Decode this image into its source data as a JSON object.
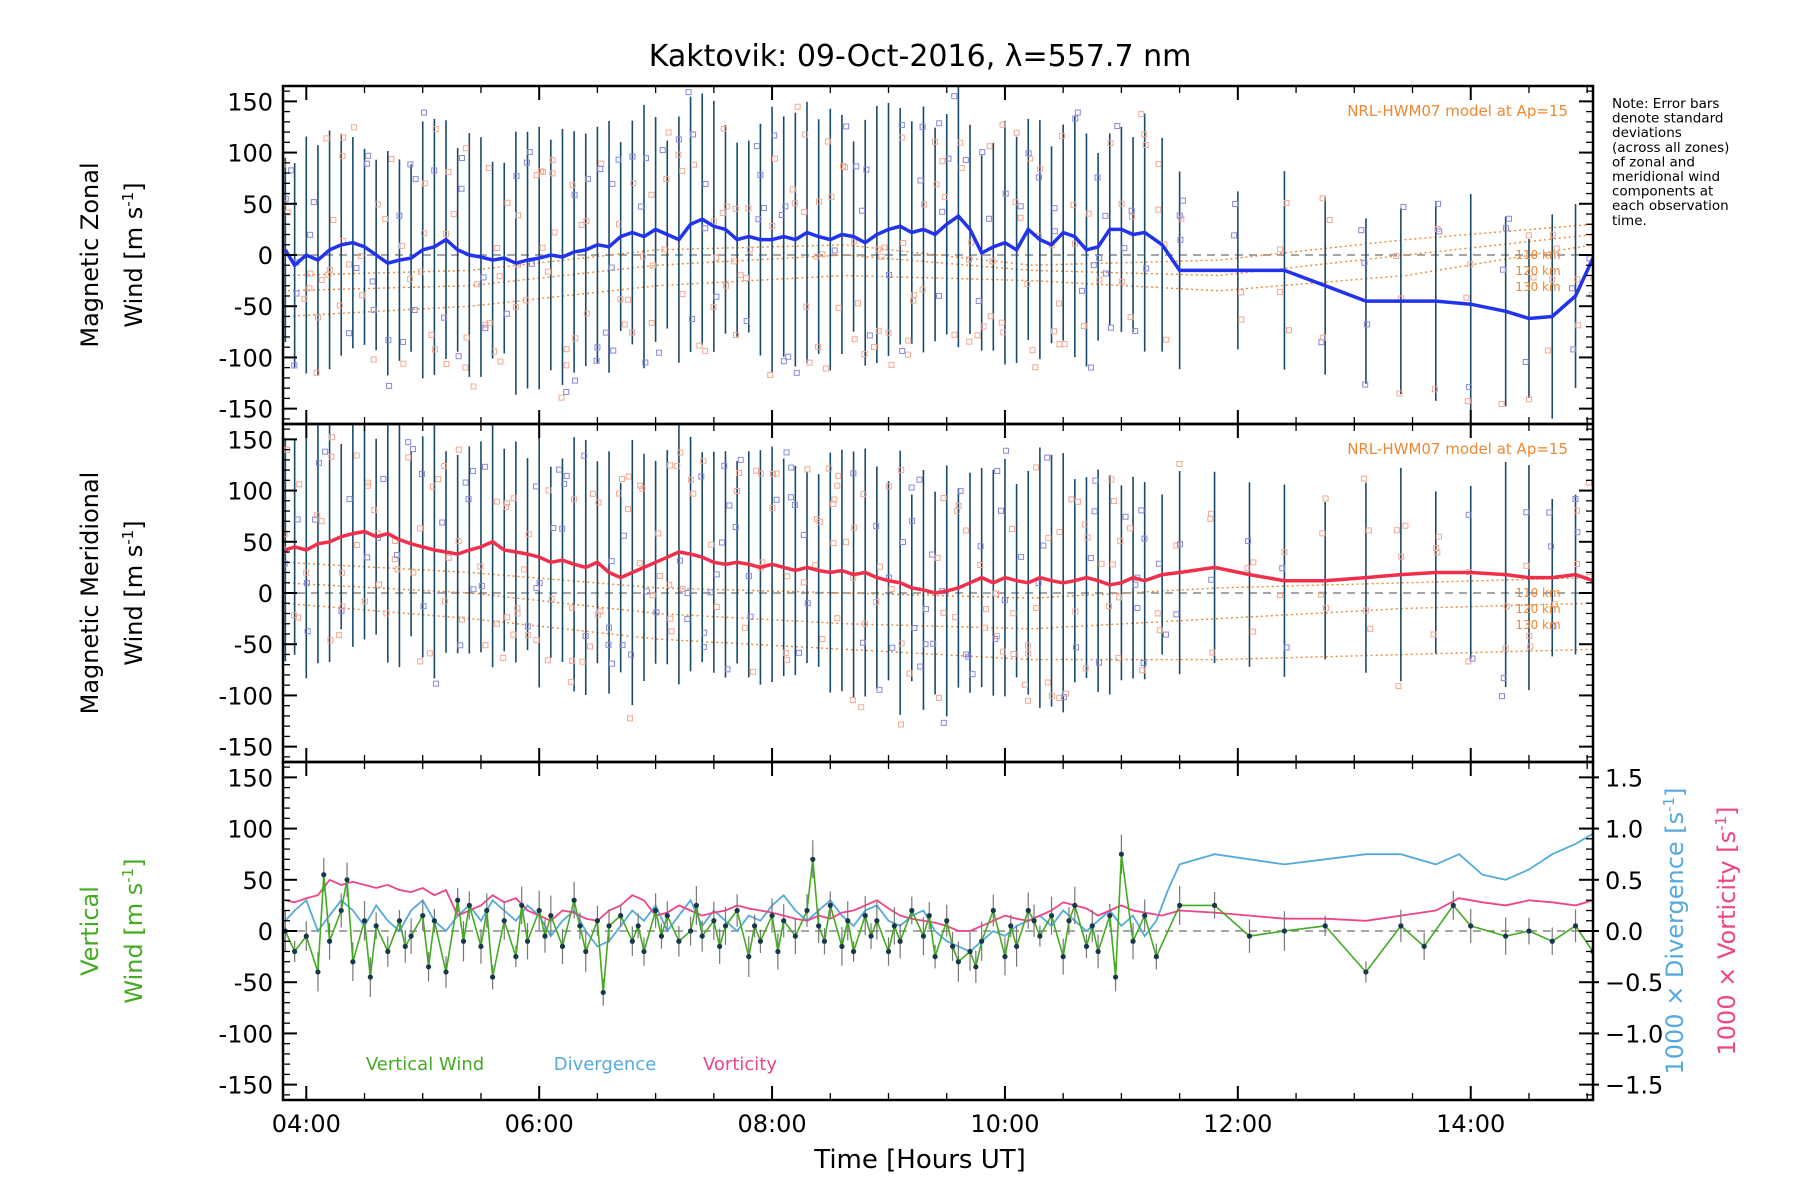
{
  "title": "Kaktovik: 09-Oct-2016, λ=557.7 nm",
  "note": {
    "lines": [
      "Note: Error bars",
      "denote standard",
      "deviations",
      "(across all zones)",
      "of zonal and",
      "meridional wind",
      "components at",
      "each observation",
      "time."
    ]
  },
  "xaxis": {
    "label": "Time [Hours UT]",
    "range": [
      3.8,
      15.05
    ],
    "ticks": [
      "04:00",
      "06:00",
      "08:00",
      "10:00",
      "12:00",
      "14:00"
    ],
    "tick_values": [
      4,
      6,
      8,
      10,
      12,
      14
    ]
  },
  "colors": {
    "zonal": "#2233ee",
    "meridional": "#f0304a",
    "vertical": "#44aa22",
    "divergence": "#55aadd",
    "vorticity": "#ee4488",
    "model": "#ee8833",
    "scatter_salmon": "#f4a890",
    "scatter_blue": "#8888dd",
    "errorbar": "#1a4a6a"
  },
  "chart_data": [
    {
      "type": "line",
      "panel": "zonal",
      "ylabel_line1": "Magnetic Zonal",
      "ylabel_line2": "Wind [m s",
      "ylabel_sup": "-1",
      "ylabel_end": "]",
      "ylim": [
        -165,
        165
      ],
      "yticks": [
        150,
        100,
        50,
        0,
        -50,
        -100,
        -150
      ],
      "model_label": "NRL-HWM07 model at Ap=15",
      "model_alt_labels": [
        "110 km",
        "120 km",
        "130 km"
      ],
      "series": [
        {
          "x": [
            3.82,
            3.9,
            4.0,
            4.1,
            4.2,
            4.3,
            4.4,
            4.5,
            4.6,
            4.7,
            4.8,
            4.9,
            5.0,
            5.1,
            5.2,
            5.3,
            5.4,
            5.5,
            5.6,
            5.7,
            5.8,
            5.9,
            6.0,
            6.1,
            6.2,
            6.3,
            6.4,
            6.5,
            6.6,
            6.7,
            6.8,
            6.9,
            7.0,
            7.1,
            7.2,
            7.3,
            7.4,
            7.5,
            7.6,
            7.7,
            7.8,
            7.9,
            8.0,
            8.1,
            8.2,
            8.3,
            8.4,
            8.5,
            8.6,
            8.7,
            8.8,
            8.9,
            9.0,
            9.1,
            9.2,
            9.3,
            9.4,
            9.5,
            9.6,
            9.7,
            9.8,
            9.9,
            10.0,
            10.1,
            10.2,
            10.3,
            10.4,
            10.5,
            10.6,
            10.7,
            10.8,
            10.9,
            11.0,
            11.1,
            11.2,
            11.35,
            11.5,
            12.0,
            12.4,
            12.75,
            13.1,
            13.4,
            13.7,
            14.0,
            14.3,
            14.5,
            14.7,
            14.9,
            15.05
          ],
          "values": [
            5,
            -10,
            0,
            -5,
            5,
            10,
            12,
            8,
            0,
            -8,
            -5,
            -3,
            5,
            8,
            15,
            5,
            0,
            -2,
            -5,
            -3,
            -8,
            -5,
            -3,
            0,
            -2,
            3,
            5,
            10,
            8,
            18,
            22,
            18,
            25,
            20,
            15,
            30,
            35,
            28,
            25,
            15,
            18,
            15,
            15,
            18,
            15,
            22,
            18,
            15,
            20,
            18,
            12,
            20,
            25,
            28,
            22,
            25,
            20,
            30,
            38,
            25,
            2,
            8,
            12,
            5,
            25,
            15,
            10,
            22,
            18,
            5,
            8,
            25,
            25,
            20,
            22,
            10,
            -15,
            -15,
            -15,
            -30,
            -45,
            -45,
            -45,
            -48,
            -55,
            -62,
            -60,
            -40,
            -3
          ]
        }
      ]
    },
    {
      "type": "line",
      "panel": "meridional",
      "ylabel_line1": "Magnetic Meridional",
      "ylabel_line2": "Wind [m s",
      "ylabel_sup": "-1",
      "ylabel_end": "]",
      "ylim": [
        -165,
        165
      ],
      "yticks": [
        150,
        100,
        50,
        0,
        -50,
        -100,
        -150
      ],
      "model_label": "NRL-HWM07 model at Ap=15",
      "model_alt_labels": [
        "110 km",
        "120 km",
        "130 km"
      ],
      "series": [
        {
          "x": [
            3.82,
            3.9,
            4.0,
            4.1,
            4.2,
            4.3,
            4.4,
            4.5,
            4.6,
            4.7,
            4.8,
            4.9,
            5.0,
            5.1,
            5.2,
            5.3,
            5.4,
            5.5,
            5.6,
            5.7,
            5.8,
            5.9,
            6.0,
            6.1,
            6.2,
            6.3,
            6.4,
            6.5,
            6.6,
            6.7,
            6.8,
            6.9,
            7.0,
            7.1,
            7.2,
            7.3,
            7.4,
            7.5,
            7.6,
            7.7,
            7.8,
            7.9,
            8.0,
            8.1,
            8.2,
            8.3,
            8.4,
            8.5,
            8.6,
            8.7,
            8.8,
            8.9,
            9.0,
            9.1,
            9.2,
            9.3,
            9.4,
            9.5,
            9.6,
            9.7,
            9.8,
            9.9,
            10.0,
            10.1,
            10.2,
            10.3,
            10.4,
            10.5,
            10.6,
            10.7,
            10.8,
            10.9,
            11.0,
            11.1,
            11.2,
            11.35,
            11.5,
            11.8,
            12.1,
            12.4,
            12.75,
            13.1,
            13.4,
            13.7,
            14.0,
            14.3,
            14.5,
            14.7,
            14.9,
            15.05
          ],
          "values": [
            42,
            45,
            42,
            48,
            50,
            55,
            58,
            60,
            55,
            58,
            52,
            48,
            45,
            42,
            40,
            38,
            42,
            45,
            50,
            42,
            40,
            38,
            35,
            30,
            32,
            28,
            25,
            30,
            20,
            15,
            20,
            25,
            30,
            35,
            40,
            38,
            35,
            30,
            28,
            30,
            28,
            25,
            28,
            25,
            22,
            25,
            22,
            20,
            22,
            18,
            20,
            15,
            12,
            10,
            5,
            3,
            0,
            2,
            5,
            10,
            15,
            10,
            15,
            12,
            10,
            15,
            12,
            10,
            12,
            15,
            12,
            8,
            10,
            15,
            12,
            18,
            20,
            25,
            18,
            12,
            12,
            15,
            18,
            20,
            20,
            18,
            15,
            15,
            18,
            12
          ]
        }
      ]
    },
    {
      "type": "line",
      "panel": "vertical",
      "ylabel_line1": "Vertical",
      "ylabel_line2": "Wind [m s",
      "ylabel_sup": "-1",
      "ylabel_end": "]",
      "ylim": [
        -165,
        165
      ],
      "yticks": [
        150,
        100,
        50,
        0,
        -50,
        -100,
        -150
      ],
      "y2label_div": "1000 × Divergence [s",
      "y2label_vor": "1000 × Vorticity [s",
      "y2label_sup": "-1",
      "y2label_end": "]",
      "y2lim": [
        -1.65,
        1.65
      ],
      "y2ticks": [
        "1.5",
        "1.0",
        "0.5",
        "0.0",
        "−0.5",
        "−1.0",
        "−1.5"
      ],
      "y2tick_values": [
        1.5,
        1.0,
        0.5,
        0.0,
        -0.5,
        -1.0,
        -1.5
      ],
      "legend": [
        "Vertical Wind",
        "Divergence",
        "Vorticity"
      ],
      "series": [
        {
          "name": "Vertical Wind",
          "x": [
            3.82,
            3.9,
            4.0,
            4.1,
            4.15,
            4.2,
            4.3,
            4.35,
            4.4,
            4.5,
            4.55,
            4.6,
            4.7,
            4.8,
            4.85,
            4.9,
            5.0,
            5.05,
            5.1,
            5.2,
            5.3,
            5.35,
            5.4,
            5.5,
            5.55,
            5.6,
            5.7,
            5.8,
            5.85,
            5.9,
            6.0,
            6.05,
            6.1,
            6.2,
            6.3,
            6.35,
            6.4,
            6.5,
            6.55,
            6.6,
            6.7,
            6.8,
            6.85,
            6.9,
            7.0,
            7.05,
            7.1,
            7.2,
            7.3,
            7.35,
            7.4,
            7.5,
            7.55,
            7.6,
            7.7,
            7.8,
            7.85,
            7.9,
            8.0,
            8.05,
            8.1,
            8.2,
            8.3,
            8.35,
            8.4,
            8.45,
            8.5,
            8.6,
            8.65,
            8.7,
            8.8,
            8.85,
            8.9,
            9.0,
            9.05,
            9.1,
            9.2,
            9.3,
            9.35,
            9.4,
            9.5,
            9.55,
            9.6,
            9.7,
            9.75,
            9.8,
            9.9,
            10.0,
            10.05,
            10.1,
            10.2,
            10.25,
            10.3,
            10.4,
            10.5,
            10.55,
            10.6,
            10.7,
            10.75,
            10.8,
            10.9,
            10.95,
            11.0,
            11.1,
            11.2,
            11.3,
            11.5,
            11.8,
            12.1,
            12.4,
            12.75,
            13.1,
            13.4,
            13.6,
            13.85,
            14.0,
            14.3,
            14.5,
            14.7,
            14.9,
            15.05
          ],
          "values": [
            0,
            -20,
            -5,
            -40,
            55,
            -10,
            20,
            50,
            -30,
            10,
            -45,
            5,
            -20,
            10,
            -15,
            -5,
            15,
            -35,
            10,
            -40,
            30,
            -10,
            25,
            -15,
            20,
            -45,
            10,
            -25,
            25,
            -10,
            20,
            -5,
            15,
            -15,
            30,
            5,
            -20,
            10,
            -60,
            5,
            15,
            -10,
            5,
            -20,
            20,
            -5,
            15,
            -10,
            0,
            25,
            -5,
            10,
            -15,
            5,
            20,
            -25,
            5,
            -10,
            15,
            -20,
            10,
            -5,
            20,
            70,
            5,
            -10,
            25,
            -15,
            10,
            -20,
            15,
            -5,
            10,
            -20,
            5,
            -10,
            20,
            -5,
            15,
            -25,
            10,
            -15,
            -30,
            -20,
            -35,
            -10,
            20,
            -25,
            5,
            -15,
            20,
            10,
            -5,
            15,
            -25,
            10,
            25,
            -15,
            5,
            -20,
            15,
            -45,
            75,
            -10,
            15,
            -25,
            25,
            25,
            -5,
            0,
            5,
            -40,
            5,
            -15,
            25,
            5,
            -5,
            0,
            -10,
            5,
            -20
          ]
        },
        {
          "name": "Divergence",
          "x": [
            3.82,
            3.9,
            4.0,
            4.1,
            4.2,
            4.3,
            4.4,
            4.5,
            4.6,
            4.7,
            4.8,
            4.9,
            5.0,
            5.1,
            5.2,
            5.3,
            5.4,
            5.5,
            5.6,
            5.7,
            5.8,
            5.9,
            6.0,
            6.1,
            6.2,
            6.3,
            6.4,
            6.5,
            6.6,
            6.7,
            6.8,
            6.9,
            7.0,
            7.1,
            7.2,
            7.3,
            7.4,
            7.5,
            7.6,
            7.7,
            7.8,
            7.9,
            8.0,
            8.1,
            8.2,
            8.3,
            8.4,
            8.5,
            8.6,
            8.7,
            8.8,
            8.9,
            9.0,
            9.1,
            9.2,
            9.3,
            9.4,
            9.5,
            9.6,
            9.7,
            9.8,
            9.9,
            10.0,
            10.1,
            10.2,
            10.3,
            10.4,
            10.5,
            10.6,
            10.7,
            10.8,
            10.9,
            11.0,
            11.1,
            11.2,
            11.3,
            11.4,
            11.5,
            11.8,
            12.1,
            12.4,
            12.75,
            13.1,
            13.4,
            13.7,
            13.9,
            14.1,
            14.3,
            14.5,
            14.7,
            14.9,
            15.05
          ],
          "values": [
            0.1,
            0.2,
            0.3,
            0.0,
            0.15,
            0.3,
            0.2,
            0.05,
            0.25,
            0.1,
            0.0,
            0.2,
            0.3,
            0.1,
            0.0,
            0.15,
            0.25,
            0.1,
            0.3,
            0.2,
            0.1,
            0.25,
            0.15,
            -0.05,
            0.1,
            0.2,
            0.0,
            -0.15,
            -0.1,
            0.05,
            0.2,
            0.1,
            0.25,
            0.0,
            0.15,
            0.3,
            0.05,
            0.2,
            0.1,
            0.0,
            0.15,
            0.1,
            0.25,
            0.35,
            0.2,
            0.1,
            0.2,
            0.3,
            0.15,
            0.05,
            0.2,
            0.25,
            0.1,
            0.05,
            0.15,
            0.2,
            0.0,
            -0.1,
            -0.15,
            -0.2,
            -0.1,
            0.0,
            -0.05,
            0.05,
            0.1,
            0.15,
            0.05,
            0.2,
            0.1,
            0.0,
            0.1,
            0.2,
            0.05,
            0.15,
            -0.05,
            0.1,
            0.4,
            0.65,
            0.75,
            0.7,
            0.65,
            0.7,
            0.75,
            0.75,
            0.65,
            0.75,
            0.55,
            0.5,
            0.6,
            0.75,
            0.85,
            0.95
          ]
        },
        {
          "name": "Vorticity",
          "x": [
            3.82,
            3.9,
            4.0,
            4.1,
            4.2,
            4.3,
            4.4,
            4.5,
            4.6,
            4.7,
            4.8,
            4.9,
            5.0,
            5.1,
            5.2,
            5.3,
            5.4,
            5.5,
            5.6,
            5.7,
            5.8,
            5.9,
            6.0,
            6.1,
            6.2,
            6.3,
            6.4,
            6.5,
            6.6,
            6.7,
            6.8,
            6.9,
            7.0,
            7.1,
            7.2,
            7.3,
            7.4,
            7.5,
            7.6,
            7.7,
            7.8,
            7.9,
            8.0,
            8.1,
            8.2,
            8.3,
            8.4,
            8.5,
            8.6,
            8.7,
            8.8,
            8.9,
            9.0,
            9.1,
            9.2,
            9.3,
            9.4,
            9.5,
            9.6,
            9.7,
            9.8,
            9.9,
            10.0,
            10.1,
            10.2,
            10.3,
            10.4,
            10.5,
            10.6,
            10.7,
            10.8,
            10.9,
            11.0,
            11.1,
            11.2,
            11.35,
            11.5,
            11.8,
            12.1,
            12.4,
            12.75,
            13.1,
            13.4,
            13.7,
            13.9,
            14.1,
            14.3,
            14.5,
            14.7,
            14.9,
            15.05
          ],
          "values": [
            0.3,
            0.28,
            0.32,
            0.35,
            0.5,
            0.45,
            0.48,
            0.45,
            0.42,
            0.45,
            0.4,
            0.38,
            0.42,
            0.35,
            0.4,
            0.15,
            0.2,
            0.25,
            0.35,
            0.28,
            0.32,
            0.2,
            0.15,
            0.1,
            0.2,
            0.18,
            0.12,
            0.1,
            0.2,
            0.25,
            0.35,
            0.3,
            0.15,
            0.18,
            0.25,
            0.2,
            0.15,
            0.18,
            0.2,
            0.25,
            0.22,
            0.2,
            0.18,
            0.15,
            0.12,
            0.1,
            0.15,
            0.12,
            0.18,
            0.2,
            0.25,
            0.3,
            0.22,
            0.15,
            0.12,
            0.1,
            0.08,
            0.05,
            0.0,
            0.0,
            0.05,
            0.1,
            0.15,
            0.12,
            0.1,
            0.15,
            0.2,
            0.28,
            0.25,
            0.22,
            0.15,
            0.2,
            0.25,
            0.2,
            0.18,
            0.15,
            0.2,
            0.18,
            0.15,
            0.12,
            0.12,
            0.1,
            0.15,
            0.2,
            0.32,
            0.28,
            0.25,
            0.3,
            0.28,
            0.25,
            0.3
          ]
        }
      ]
    }
  ]
}
